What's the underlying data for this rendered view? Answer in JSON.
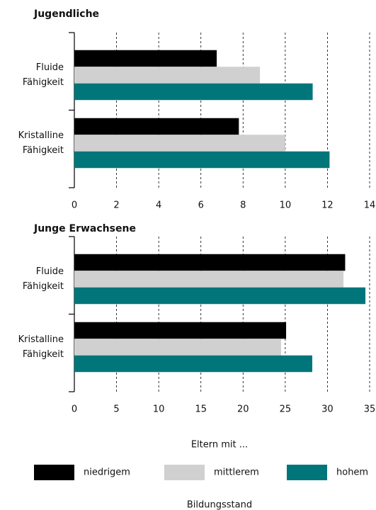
{
  "chart_data": [
    {
      "type": "bar",
      "orientation": "horizontal",
      "title": "Jugendliche",
      "categories": [
        "Fluide Fähigkeit",
        "Kristalline Fähigkeit"
      ],
      "series": [
        {
          "name": "niedrigem",
          "color": "#000000",
          "values": [
            6.75,
            7.8
          ]
        },
        {
          "name": "mittlerem",
          "color": "#d0d0d0",
          "values": [
            8.8,
            10.0
          ]
        },
        {
          "name": "hohem",
          "color": "#00767b",
          "values": [
            11.3,
            12.1
          ]
        }
      ],
      "xlim": [
        0,
        14
      ],
      "xticks": [
        0,
        2,
        4,
        6,
        8,
        10,
        12,
        14
      ],
      "grid": true,
      "legend_title": "Eltern mit ...",
      "legend_subtitle": "Bildungsstand"
    },
    {
      "type": "bar",
      "orientation": "horizontal",
      "title": "Junge Erwachsene",
      "categories": [
        "Fluide Fähigkeit",
        "Kristalline Fähigkeit"
      ],
      "series": [
        {
          "name": "niedrigem",
          "color": "#000000",
          "values": [
            32.1,
            25.1
          ]
        },
        {
          "name": "mittlerem",
          "color": "#d0d0d0",
          "values": [
            31.9,
            24.5
          ]
        },
        {
          "name": "hohem",
          "color": "#00767b",
          "values": [
            34.5,
            28.2
          ]
        }
      ],
      "xlim": [
        0,
        35
      ],
      "xticks": [
        0,
        5,
        10,
        15,
        20,
        25,
        30,
        35
      ],
      "grid": true
    }
  ]
}
